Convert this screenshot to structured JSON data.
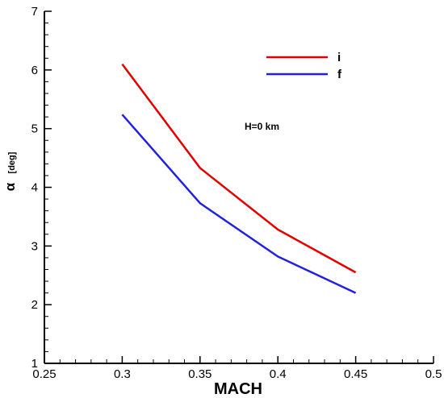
{
  "chart_data": {
    "type": "line",
    "title": "",
    "xlabel": "MACH",
    "ylabel": "α",
    "ylabel_unit": "[deg]",
    "xlim": [
      0.25,
      0.5
    ],
    "ylim": [
      1,
      7
    ],
    "xticks": [
      0.25,
      0.3,
      0.35,
      0.4,
      0.45,
      0.5
    ],
    "xtick_labels": [
      "0.25",
      "0.3",
      "0.35",
      "0.4",
      "0.45",
      "0.5"
    ],
    "yticks": [
      1,
      2,
      3,
      4,
      5,
      6,
      7
    ],
    "ytick_labels": [
      "1",
      "2",
      "3",
      "4",
      "5",
      "6",
      "7"
    ],
    "grid": false,
    "legend_position": "top-right",
    "annotation": "H=0 km",
    "x": [
      0.3,
      0.35,
      0.4,
      0.45
    ],
    "series": [
      {
        "name": "i",
        "color": "#e00000",
        "values": [
          6.1,
          4.33,
          3.28,
          2.55
        ]
      },
      {
        "name": "f",
        "color": "#2222dd",
        "values": [
          5.24,
          3.73,
          2.82,
          2.2
        ]
      }
    ]
  }
}
